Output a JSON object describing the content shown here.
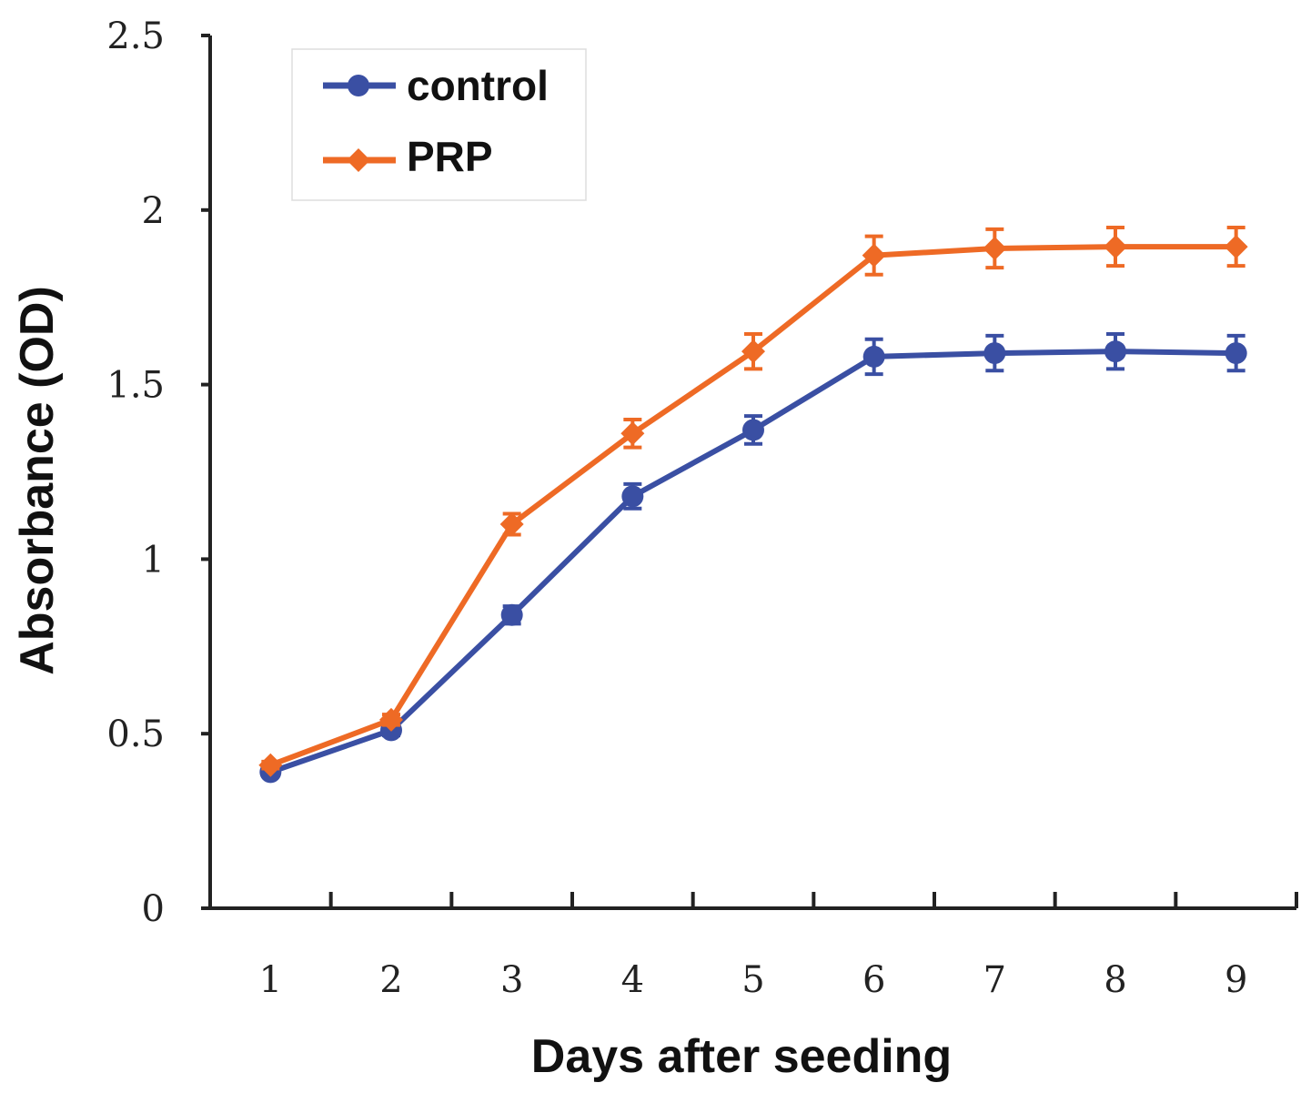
{
  "chart_data": {
    "type": "line",
    "title": "",
    "xlabel": "Days after seeding",
    "ylabel": "Absorbance (OD)",
    "categories": [
      "1",
      "2",
      "3",
      "4",
      "5",
      "6",
      "7",
      "8",
      "9"
    ],
    "ylim": [
      0,
      2.5
    ],
    "yticks": [
      "0",
      "0.5",
      "1",
      "1.5",
      "2",
      "2.5"
    ],
    "ytick_values": [
      0,
      0.5,
      1,
      1.5,
      2,
      2.5
    ],
    "grid": false,
    "legend_position": "top-left",
    "series": [
      {
        "name": "control",
        "color": "#3a4fa3",
        "marker": "circle",
        "values": [
          0.39,
          0.51,
          0.84,
          1.18,
          1.37,
          1.58,
          1.59,
          1.595,
          1.59
        ],
        "errors": [
          0.01,
          0.015,
          0.025,
          0.035,
          0.04,
          0.05,
          0.05,
          0.05,
          0.05
        ]
      },
      {
        "name": "PRP",
        "color": "#ee6a25",
        "marker": "diamond",
        "values": [
          0.41,
          0.54,
          1.1,
          1.36,
          1.595,
          1.87,
          1.89,
          1.895,
          1.895
        ],
        "errors": [
          0.01,
          0.015,
          0.03,
          0.04,
          0.05,
          0.055,
          0.055,
          0.055,
          0.055
        ]
      }
    ]
  }
}
